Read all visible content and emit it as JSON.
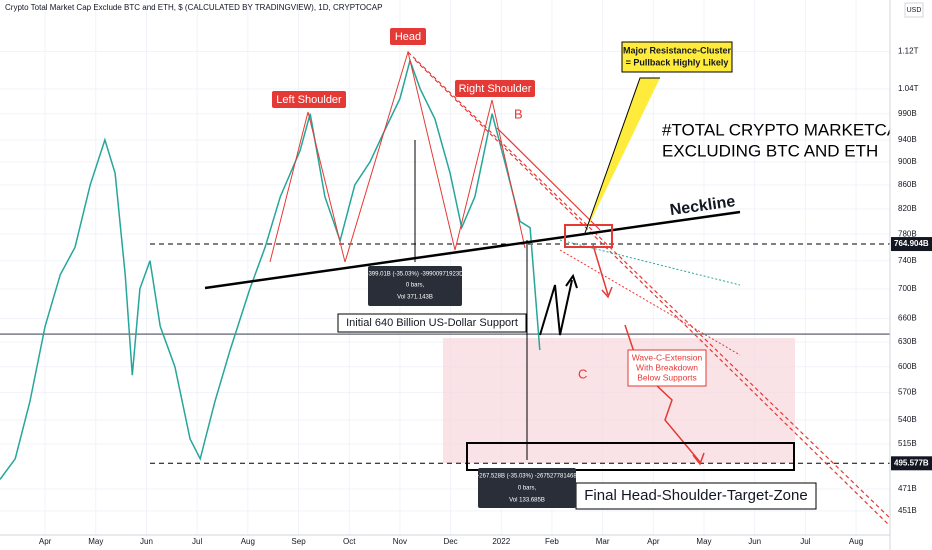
{
  "chart_data": {
    "type": "line",
    "title": "Crypto Total Market Cap Exclude BTC and ETH, $ (CALCULATED BY TRADINGVIEW), 1D, CRYPTOCAP",
    "currency": "USD",
    "color": "#26a69a",
    "log_scale": true,
    "x": [
      -0.89,
      -0.59,
      -0.3,
      0,
      0.3,
      0.59,
      0.89,
      1.18,
      1.38,
      1.58,
      1.72,
      1.87,
      2.07,
      2.27,
      2.56,
      2.86,
      3.06,
      3.35,
      3.65,
      4.04,
      4.34,
      4.64,
      5.03,
      5.23,
      5.52,
      5.82,
      6.11,
      6.41,
      6.71,
      7.0,
      7.2,
      7.4,
      7.69,
      7.99,
      8.22,
      8.48,
      8.82,
      9.07,
      9.37,
      9.57,
      9.76
    ],
    "values": [
      480,
      500,
      560,
      650,
      720,
      760,
      860,
      940,
      880,
      720,
      590,
      700,
      740,
      650,
      600,
      520,
      500,
      560,
      620,
      700,
      760,
      840,
      920,
      990,
      840,
      770,
      860,
      900,
      960,
      1020,
      1100,
      1040,
      980,
      880,
      790,
      840,
      990,
      900,
      800,
      790,
      620
    ],
    "xlim": [
      -0.89,
      16.67
    ],
    "xticks": [
      {
        "value": 0,
        "label": "Apr"
      },
      {
        "value": 1,
        "label": "May"
      },
      {
        "value": 2,
        "label": "Jun"
      },
      {
        "value": 3,
        "label": "Jul"
      },
      {
        "value": 4,
        "label": "Aug"
      },
      {
        "value": 5,
        "label": "Sep"
      },
      {
        "value": 6,
        "label": "Oct"
      },
      {
        "value": 7,
        "label": "Nov"
      },
      {
        "value": 8,
        "label": "Dec"
      },
      {
        "value": 9,
        "label": "2022"
      },
      {
        "value": 10,
        "label": "Feb"
      },
      {
        "value": 11,
        "label": "Mar"
      },
      {
        "value": 12,
        "label": "Apr"
      },
      {
        "value": 13,
        "label": "May"
      },
      {
        "value": 14,
        "label": "Jun"
      },
      {
        "value": 15,
        "label": "Jul"
      },
      {
        "value": 16,
        "label": "Aug"
      }
    ],
    "ylim": [
      430,
      1240
    ],
    "yticks": [
      {
        "value": 451,
        "label": "451B"
      },
      {
        "value": 471,
        "label": "471B"
      },
      {
        "value": 515,
        "label": "515B"
      },
      {
        "value": 540,
        "label": "540B"
      },
      {
        "value": 570,
        "label": "570B"
      },
      {
        "value": 600,
        "label": "600B"
      },
      {
        "value": 630,
        "label": "630B"
      },
      {
        "value": 660,
        "label": "660B"
      },
      {
        "value": 700,
        "label": "700B"
      },
      {
        "value": 740,
        "label": "740B"
      },
      {
        "value": 780,
        "label": "780B"
      },
      {
        "value": 820,
        "label": "820B"
      },
      {
        "value": 860,
        "label": "860B"
      },
      {
        "value": 900,
        "label": "900B"
      },
      {
        "value": 940,
        "label": "940B"
      },
      {
        "value": 990,
        "label": "990B"
      },
      {
        "value": 1040,
        "label": "1.04T"
      },
      {
        "value": 1120,
        "label": "1.12T"
      }
    ],
    "levels": [
      {
        "value": 764.904,
        "label": "764.904B"
      },
      {
        "value": 495.577,
        "label": "495.577B"
      }
    ],
    "support_level": 640,
    "annotations": {
      "head": "Head",
      "left_shoulder": "Left Shoulder",
      "right_shoulder": "Right Shoulder",
      "b": "B",
      "c": "C",
      "neckline": "Neckline",
      "resistance": [
        "Major Resistance-Cluster",
        "= Pullback Highly Likely"
      ],
      "headline": [
        "#TOTAL CRYPTO MARKETCAP",
        "EXCLUDING BTC AND ETH"
      ],
      "support": "Initial 640 Billion US-Dollar Support",
      "wave_c": [
        "Wave-C-Extension",
        "With Breakdown",
        "Below Supports"
      ],
      "target": "Final Head-Shoulder-Target-Zone",
      "measure1": [
        "-399.01B (-35.03%) -39900971923D",
        "0 bars,",
        "Vol 371.143B"
      ],
      "measure2": [
        "-267.528B (-35.03%) -267527781468",
        "0 bars,",
        "Vol 133.685B"
      ]
    }
  }
}
